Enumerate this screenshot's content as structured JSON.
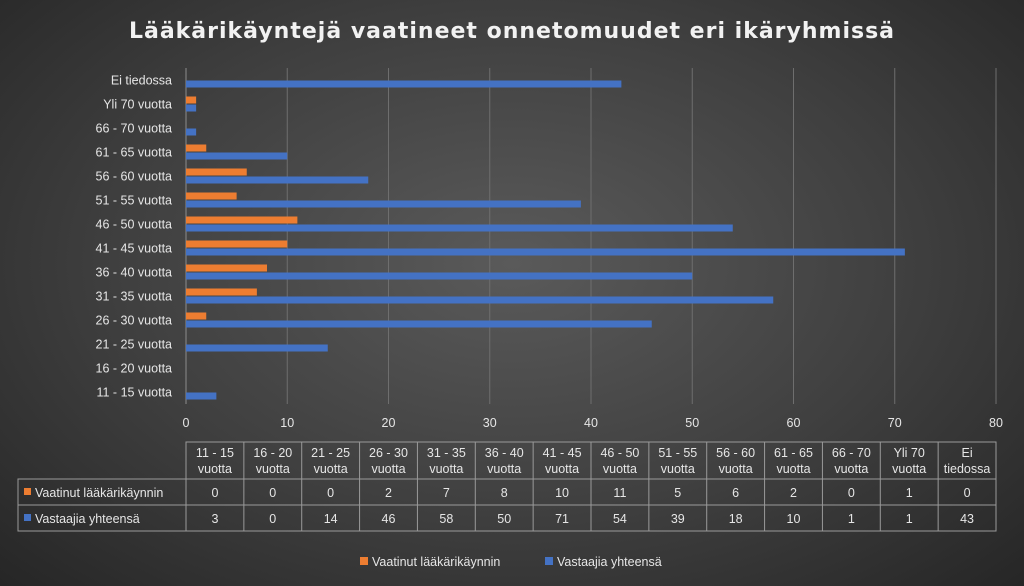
{
  "chart_data": {
    "type": "bar",
    "orientation": "horizontal",
    "title": "Lääkärikäyntejä vaatineet onnetomuudet eri ikäryhmissä",
    "categories": [
      "11 - 15 vuotta",
      "16 - 20 vuotta",
      "21 - 25 vuotta",
      "26 - 30 vuotta",
      "31 - 35 vuotta",
      "36 - 40 vuotta",
      "41 - 45 vuotta",
      "46 - 50 vuotta",
      "51 - 55 vuotta",
      "56 - 60 vuotta",
      "61 - 65 vuotta",
      "66 - 70 vuotta",
      "Yli 70 vuotta",
      "Ei tiedossa"
    ],
    "table_headers": [
      [
        "11 - 15",
        "vuotta"
      ],
      [
        "16 - 20",
        "vuotta"
      ],
      [
        "21 - 25",
        "vuotta"
      ],
      [
        "26 - 30",
        "vuotta"
      ],
      [
        "31 - 35",
        "vuotta"
      ],
      [
        "36 - 40",
        "vuotta"
      ],
      [
        "41 - 45",
        "vuotta"
      ],
      [
        "46 - 50",
        "vuotta"
      ],
      [
        "51 - 55",
        "vuotta"
      ],
      [
        "56 - 60",
        "vuotta"
      ],
      [
        "61 - 65",
        "vuotta"
      ],
      [
        "66 - 70",
        "vuotta"
      ],
      [
        "Yli 70",
        "vuotta"
      ],
      [
        "Ei",
        "tiedossa"
      ]
    ],
    "series": [
      {
        "name": "Vaatinut lääkärikäynnin",
        "color": "#ed7d31",
        "values": [
          0,
          0,
          0,
          2,
          7,
          8,
          10,
          11,
          5,
          6,
          2,
          0,
          1,
          0
        ]
      },
      {
        "name": "Vastaajia yhteensä",
        "color": "#4472c4",
        "values": [
          3,
          0,
          14,
          46,
          58,
          50,
          71,
          54,
          39,
          18,
          10,
          1,
          1,
          43
        ]
      }
    ],
    "xlim": [
      0,
      80
    ],
    "xticks": [
      0,
      10,
      20,
      30,
      40,
      50,
      60,
      70,
      80
    ],
    "grid": true,
    "legend_position": "bottom",
    "data_table": true
  }
}
